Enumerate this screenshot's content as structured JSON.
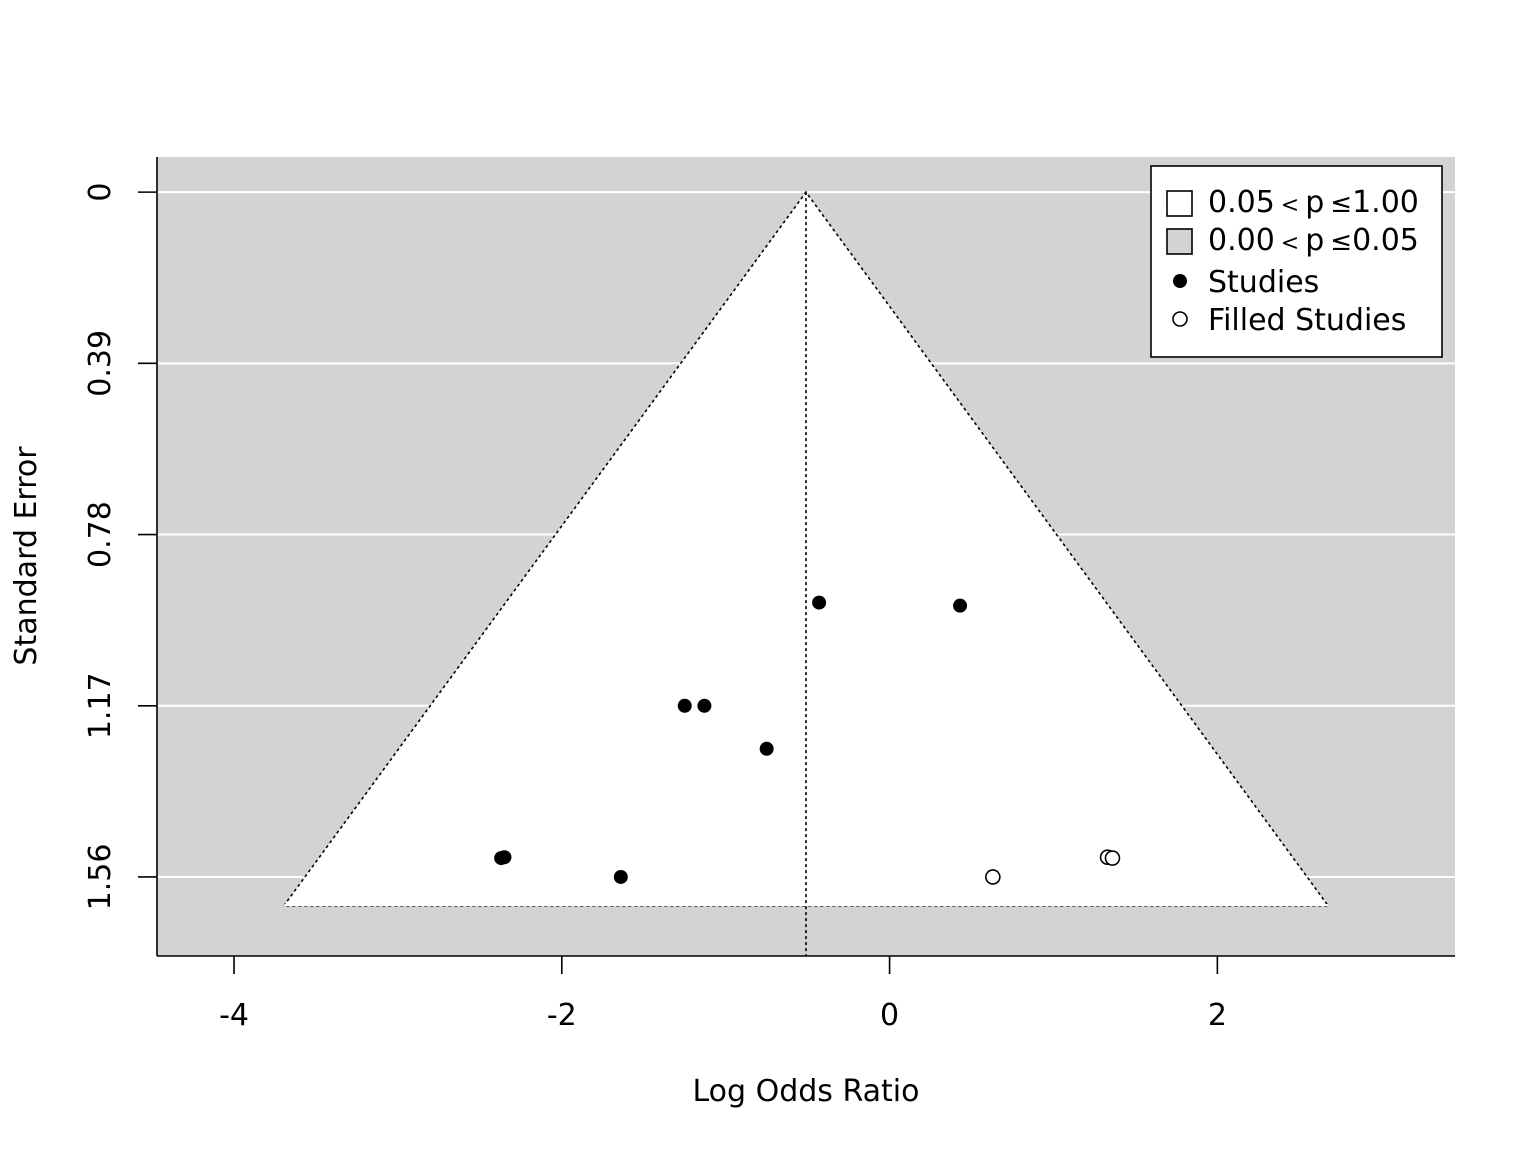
{
  "chart_data": {
    "type": "scatter",
    "subtype": "contour-enhanced funnel plot (trim and fill)",
    "xlabel": "Log Odds Ratio",
    "ylabel": "Standard Error",
    "xlim": [
      -4.47,
      3.45
    ],
    "ylim_reversed": [
      1.74,
      -0.08
    ],
    "x_ticks": [
      -4,
      -2,
      0,
      2
    ],
    "x_tick_labels": [
      "-4",
      "-2",
      "0",
      "2"
    ],
    "y_ticks": [
      0,
      0.39,
      0.78,
      1.17,
      1.56
    ],
    "y_tick_labels": [
      "0",
      "0.39",
      "0.78",
      "1.17",
      "1.56"
    ],
    "grid": "horizontal",
    "pooled_estimate": -0.51,
    "funnel_z": 1.96,
    "se_max": 1.626,
    "colors": {
      "region_significant": "#d3d3d3",
      "region_nonsignificant": "#ffffff",
      "grid": "#ffffff",
      "points": "#000000"
    },
    "legend_position": "top-right",
    "legend": [
      {
        "marker": "square-white",
        "parts": [
          "0.05",
          "<",
          "p",
          "≤",
          "1.00"
        ]
      },
      {
        "marker": "square-gray",
        "parts": [
          "0.00",
          "<",
          "p",
          "≤",
          "0.05"
        ]
      },
      {
        "marker": "filled-circle",
        "parts": [
          "Studies"
        ]
      },
      {
        "marker": "open-circle",
        "parts": [
          "Filled Studies"
        ]
      }
    ],
    "series": [
      {
        "name": "Studies",
        "marker": "filled",
        "points": [
          {
            "x": -0.43,
            "y": 0.935
          },
          {
            "x": 0.43,
            "y": 0.942
          },
          {
            "x": -1.25,
            "y": 1.17
          },
          {
            "x": -1.13,
            "y": 1.17
          },
          {
            "x": -0.75,
            "y": 1.268
          },
          {
            "x": -2.37,
            "y": 1.517
          },
          {
            "x": -2.35,
            "y": 1.515
          },
          {
            "x": -1.64,
            "y": 1.56
          }
        ]
      },
      {
        "name": "Filled Studies",
        "marker": "open",
        "points": [
          {
            "x": 0.63,
            "y": 1.56
          },
          {
            "x": 1.33,
            "y": 1.515
          },
          {
            "x": 1.36,
            "y": 1.517
          }
        ]
      }
    ]
  }
}
